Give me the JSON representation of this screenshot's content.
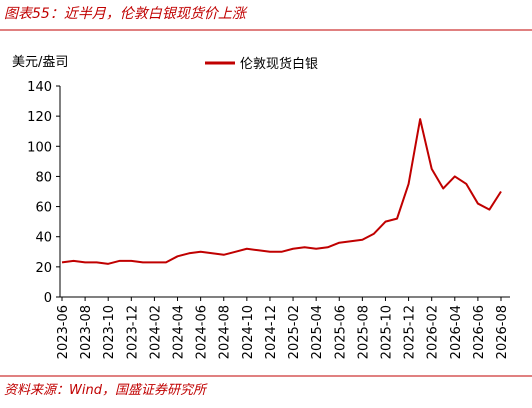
{
  "chart_data": {
    "type": "line",
    "title": "图表55：近半月，伦敦白银现货价上涨",
    "y_label": "美元/盎司",
    "source": "资料来源：Wind，国盛证券研究所",
    "categories": [
      "2023-06",
      null,
      "2023-08",
      null,
      "2023-10",
      null,
      "2023-12",
      null,
      "2024-02",
      null,
      "2024-04",
      null,
      "2024-06",
      null,
      "2024-08",
      null,
      "2024-10",
      null,
      "2024-12",
      null,
      "2025-02",
      null,
      "2025-04",
      null,
      "2025-06",
      null,
      "2025-08",
      null,
      "2025-10",
      null,
      "2025-12",
      null,
      "2026-02",
      null,
      "2026-04",
      null,
      "2026-06",
      null,
      "2026-08"
    ],
    "series": [
      {
        "name": "伦敦现货白银",
        "color": "#c00000",
        "values": [
          23,
          24,
          23,
          23,
          22,
          24,
          24,
          23,
          23,
          23,
          27,
          29,
          30,
          29,
          28,
          30,
          32,
          31,
          30,
          30,
          32,
          33,
          32,
          33,
          36,
          37,
          38,
          42,
          50,
          52,
          75,
          118,
          85,
          72,
          80,
          75,
          62,
          58,
          70
        ]
      }
    ],
    "ylim": [
      0,
      140
    ],
    "yticks": [
      0,
      20,
      40,
      60,
      80,
      100,
      120,
      140
    ]
  }
}
